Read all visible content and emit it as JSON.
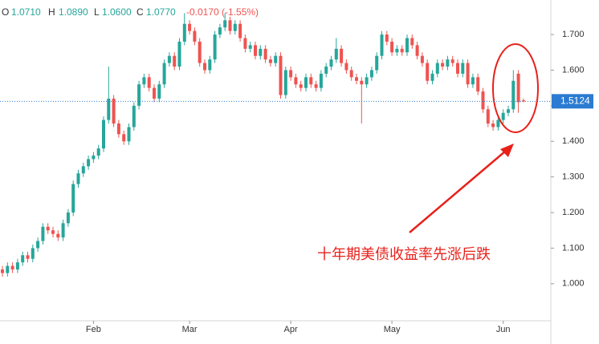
{
  "chart_data": {
    "type": "candlestick",
    "header": {
      "open_label": "O",
      "open": "1.0710",
      "high_label": "H",
      "high": "1.0890",
      "low_label": "L",
      "low": "1.0600",
      "close_label": "C",
      "close": "1.0770",
      "change": "-0.0170 (-1.55%)"
    },
    "annotation": "十年期美债收益率先涨后跌",
    "last_price": {
      "value": 1.5124,
      "label": "1.5124"
    },
    "up_color": "#26a69a",
    "down_color": "#ef5350",
    "ylim": [
      0.896,
      1.797
    ],
    "yticks": [
      {
        "value": 1.0,
        "label": "1.000"
      },
      {
        "value": 1.1,
        "label": "1.100"
      },
      {
        "value": 1.2,
        "label": "1.200"
      },
      {
        "value": 1.3,
        "label": "1.300"
      },
      {
        "value": 1.4,
        "label": "1.400"
      },
      {
        "value": 1.5,
        "label": "1.500"
      },
      {
        "value": 1.6,
        "label": "1.600"
      },
      {
        "value": 1.7,
        "label": "1.700"
      }
    ],
    "categories": [
      null,
      null,
      null,
      null,
      null,
      null,
      null,
      null,
      null,
      null,
      null,
      null,
      null,
      null,
      null,
      null,
      null,
      null,
      "Feb",
      null,
      null,
      null,
      null,
      null,
      null,
      null,
      null,
      null,
      null,
      null,
      null,
      null,
      null,
      null,
      null,
      null,
      null,
      "Mar",
      null,
      null,
      null,
      null,
      null,
      null,
      null,
      null,
      null,
      null,
      null,
      null,
      null,
      null,
      null,
      null,
      null,
      null,
      null,
      "Apr",
      null,
      null,
      null,
      null,
      null,
      null,
      null,
      null,
      null,
      null,
      null,
      null,
      null,
      null,
      null,
      null,
      null,
      null,
      null,
      "May",
      null,
      null,
      null,
      null,
      null,
      null,
      null,
      null,
      null,
      null,
      null,
      null,
      null,
      null,
      null,
      null,
      null,
      null,
      null,
      null,
      null,
      "Jun",
      null,
      null,
      null,
      null
    ],
    "open": [
      1.04,
      1.03,
      1.05,
      1.04,
      1.06,
      1.08,
      1.07,
      1.1,
      1.12,
      1.16,
      1.15,
      1.14,
      1.13,
      1.17,
      1.2,
      1.28,
      1.31,
      1.33,
      1.35,
      1.36,
      1.38,
      1.46,
      1.52,
      1.45,
      1.42,
      1.4,
      1.44,
      1.5,
      1.56,
      1.58,
      1.55,
      1.52,
      1.56,
      1.62,
      1.64,
      1.61,
      1.68,
      1.73,
      1.71,
      1.68,
      1.62,
      1.6,
      1.63,
      1.7,
      1.72,
      1.74,
      1.71,
      1.73,
      1.69,
      1.66,
      1.67,
      1.64,
      1.66,
      1.63,
      1.62,
      1.64,
      1.53,
      1.6,
      1.58,
      1.56,
      1.55,
      1.58,
      1.56,
      1.55,
      1.59,
      1.61,
      1.63,
      1.66,
      1.62,
      1.6,
      1.58,
      1.57,
      1.56,
      1.58,
      1.6,
      1.64,
      1.7,
      1.68,
      1.65,
      1.66,
      1.65,
      1.69,
      1.67,
      1.64,
      1.62,
      1.57,
      1.59,
      1.62,
      1.61,
      1.63,
      1.62,
      1.59,
      1.62,
      1.56,
      1.58,
      1.54,
      1.49,
      1.45,
      1.44,
      1.46,
      1.48,
      1.49,
      1.59,
      1.515
    ],
    "high": [
      1.05,
      1.06,
      1.06,
      1.07,
      1.09,
      1.09,
      1.11,
      1.13,
      1.17,
      1.17,
      1.16,
      1.15,
      1.18,
      1.21,
      1.29,
      1.32,
      1.34,
      1.36,
      1.37,
      1.39,
      1.47,
      1.61,
      1.53,
      1.46,
      1.43,
      1.45,
      1.51,
      1.57,
      1.59,
      1.59,
      1.56,
      1.57,
      1.63,
      1.65,
      1.65,
      1.69,
      1.76,
      1.74,
      1.72,
      1.69,
      1.63,
      1.64,
      1.71,
      1.73,
      1.76,
      1.75,
      1.74,
      1.74,
      1.7,
      1.68,
      1.68,
      1.67,
      1.67,
      1.64,
      1.65,
      1.65,
      1.61,
      1.61,
      1.59,
      1.57,
      1.59,
      1.59,
      1.57,
      1.6,
      1.62,
      1.64,
      1.69,
      1.67,
      1.63,
      1.61,
      1.59,
      1.58,
      1.59,
      1.61,
      1.65,
      1.71,
      1.71,
      1.69,
      1.67,
      1.67,
      1.7,
      1.7,
      1.68,
      1.65,
      1.63,
      1.6,
      1.63,
      1.63,
      1.64,
      1.64,
      1.63,
      1.63,
      1.63,
      1.59,
      1.59,
      1.55,
      1.5,
      1.46,
      1.47,
      1.49,
      1.5,
      1.6,
      1.6,
      1.52
    ],
    "low": [
      1.02,
      1.02,
      1.03,
      1.03,
      1.05,
      1.06,
      1.06,
      1.09,
      1.11,
      1.14,
      1.13,
      1.12,
      1.12,
      1.16,
      1.19,
      1.27,
      1.3,
      1.32,
      1.34,
      1.35,
      1.37,
      1.45,
      1.44,
      1.41,
      1.39,
      1.39,
      1.43,
      1.49,
      1.55,
      1.54,
      1.51,
      1.51,
      1.55,
      1.61,
      1.6,
      1.6,
      1.67,
      1.7,
      1.67,
      1.61,
      1.59,
      1.59,
      1.62,
      1.69,
      1.71,
      1.7,
      1.7,
      1.68,
      1.65,
      1.65,
      1.63,
      1.63,
      1.62,
      1.61,
      1.61,
      1.52,
      1.52,
      1.57,
      1.55,
      1.54,
      1.54,
      1.55,
      1.54,
      1.54,
      1.58,
      1.6,
      1.62,
      1.61,
      1.59,
      1.57,
      1.56,
      1.45,
      1.55,
      1.57,
      1.59,
      1.63,
      1.67,
      1.64,
      1.64,
      1.64,
      1.64,
      1.66,
      1.63,
      1.61,
      1.56,
      1.56,
      1.58,
      1.6,
      1.6,
      1.61,
      1.58,
      1.58,
      1.55,
      1.55,
      1.53,
      1.48,
      1.44,
      1.43,
      1.43,
      1.45,
      1.47,
      1.48,
      1.48,
      1.51
    ],
    "close": [
      1.03,
      1.05,
      1.04,
      1.06,
      1.08,
      1.07,
      1.1,
      1.12,
      1.16,
      1.15,
      1.14,
      1.13,
      1.17,
      1.2,
      1.28,
      1.31,
      1.33,
      1.35,
      1.36,
      1.38,
      1.46,
      1.52,
      1.45,
      1.42,
      1.4,
      1.44,
      1.5,
      1.56,
      1.58,
      1.55,
      1.52,
      1.56,
      1.62,
      1.64,
      1.61,
      1.68,
      1.73,
      1.71,
      1.68,
      1.62,
      1.6,
      1.63,
      1.7,
      1.72,
      1.74,
      1.71,
      1.73,
      1.69,
      1.66,
      1.67,
      1.64,
      1.66,
      1.63,
      1.62,
      1.64,
      1.53,
      1.6,
      1.58,
      1.56,
      1.55,
      1.58,
      1.56,
      1.55,
      1.59,
      1.61,
      1.63,
      1.66,
      1.62,
      1.6,
      1.58,
      1.57,
      1.56,
      1.58,
      1.6,
      1.64,
      1.7,
      1.68,
      1.65,
      1.66,
      1.65,
      1.69,
      1.67,
      1.64,
      1.62,
      1.57,
      1.59,
      1.62,
      1.61,
      1.63,
      1.62,
      1.59,
      1.62,
      1.56,
      1.58,
      1.54,
      1.49,
      1.45,
      1.44,
      1.46,
      1.48,
      1.49,
      1.57,
      1.51,
      1.512
    ]
  }
}
